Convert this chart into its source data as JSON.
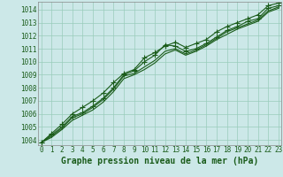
{
  "xlabel": "Graphe pression niveau de la mer (hPa)",
  "background_color": "#cce8e8",
  "grid_color": "#99ccbb",
  "line_color": "#1a5c1a",
  "marker_color": "#1a5c1a",
  "x_values": [
    0,
    1,
    2,
    3,
    4,
    5,
    6,
    7,
    8,
    9,
    10,
    11,
    12,
    13,
    14,
    15,
    16,
    17,
    18,
    19,
    20,
    21,
    22,
    23
  ],
  "series": [
    [
      1003.8,
      1004.4,
      1005.0,
      1005.8,
      1006.1,
      1006.6,
      1007.2,
      1008.0,
      1009.0,
      1009.3,
      1010.0,
      1010.5,
      1011.3,
      1011.2,
      1010.8,
      1011.0,
      1011.4,
      1011.9,
      1012.4,
      1012.7,
      1013.1,
      1013.3,
      1014.1,
      1014.3
    ],
    [
      1003.8,
      1004.3,
      1004.9,
      1005.7,
      1006.0,
      1006.5,
      1007.1,
      1007.9,
      1008.9,
      1009.1,
      1009.6,
      1010.1,
      1010.8,
      1011.0,
      1010.6,
      1010.9,
      1011.3,
      1011.8,
      1012.3,
      1012.6,
      1012.9,
      1013.2,
      1013.9,
      1014.2
    ],
    [
      1003.8,
      1004.5,
      1005.2,
      1006.0,
      1006.5,
      1007.0,
      1007.6,
      1008.4,
      1009.1,
      1009.4,
      1010.3,
      1010.7,
      1011.2,
      1011.5,
      1011.1,
      1011.4,
      1011.7,
      1012.3,
      1012.7,
      1013.0,
      1013.3,
      1013.6,
      1014.3,
      1014.5
    ],
    [
      1003.8,
      1004.2,
      1004.8,
      1005.5,
      1005.9,
      1006.3,
      1006.9,
      1007.7,
      1008.7,
      1009.0,
      1009.4,
      1009.9,
      1010.6,
      1010.9,
      1010.5,
      1010.8,
      1011.2,
      1011.7,
      1012.1,
      1012.5,
      1012.8,
      1013.1,
      1013.8,
      1014.1
    ]
  ],
  "ylim_min": 1003.6,
  "ylim_max": 1014.6,
  "yticks": [
    1004,
    1005,
    1006,
    1007,
    1008,
    1009,
    1010,
    1011,
    1012,
    1013,
    1014
  ],
  "xticks": [
    0,
    1,
    2,
    3,
    4,
    5,
    6,
    7,
    8,
    9,
    10,
    11,
    12,
    13,
    14,
    15,
    16,
    17,
    18,
    19,
    20,
    21,
    22,
    23
  ],
  "marker": "+",
  "marker_size": 5,
  "line_width": 0.8,
  "xlabel_fontsize": 7,
  "tick_fontsize": 5.5,
  "xlabel_color": "#1a5c1a",
  "tick_color": "#1a5c1a",
  "axis_color": "#888888",
  "has_markers": [
    true,
    false,
    true,
    false
  ]
}
